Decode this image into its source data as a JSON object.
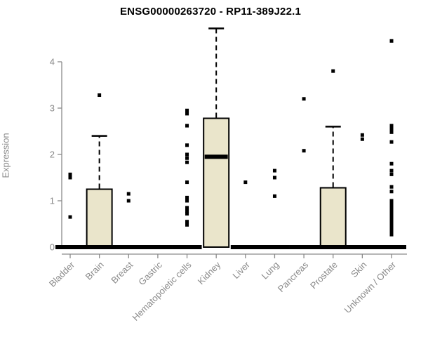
{
  "title": "ENSG00000263720 - RP11-389J22.1",
  "y_axis_title": "Expression",
  "chart_data": {
    "type": "boxplot",
    "title": "ENSG00000263720 - RP11-389J22.1",
    "xlabel": "",
    "ylabel": "Expression",
    "ylim": [
      0,
      4
    ],
    "yticks": [
      0,
      1,
      2,
      3,
      4
    ],
    "grid": false,
    "legend": "none",
    "colors": {
      "box_fill": "#EAE5CB",
      "box_border": "#000000",
      "median": "#000000",
      "whisker": "#000000",
      "outlier": "#000000",
      "axis": "#8a8a8a",
      "tick_label": "#8a8a8a",
      "title": "#000000",
      "background": "#ffffff"
    },
    "categories": [
      "Bladder",
      "Brain",
      "Breast",
      "Gastric",
      "Hematopoietic cells",
      "Kidney",
      "Liver",
      "Lung",
      "Pancreas",
      "Prostate",
      "Skin",
      "Unknown / Other"
    ],
    "series": [
      {
        "label": "Bladder",
        "q1": 0,
        "median": 0,
        "q3": 0,
        "whisker_low": 0,
        "whisker_high": 0,
        "outliers": [
          1.57,
          1.5,
          0.65
        ]
      },
      {
        "label": "Brain",
        "q1": 0,
        "median": 0,
        "q3": 1.25,
        "whisker_low": 0,
        "whisker_high": 2.4,
        "outliers": [
          3.28
        ]
      },
      {
        "label": "Breast",
        "q1": 0,
        "median": 0,
        "q3": 0,
        "whisker_low": 0,
        "whisker_high": 0,
        "outliers": [
          1.15,
          1.0
        ]
      },
      {
        "label": "Gastric",
        "q1": 0,
        "median": 0,
        "q3": 0,
        "whisker_low": 0,
        "whisker_high": 0,
        "outliers": []
      },
      {
        "label": "Hematopoietic cells",
        "q1": 0,
        "median": 0,
        "q3": 0,
        "whisker_low": 0,
        "whisker_high": 0,
        "outliers": [
          2.95,
          2.88,
          2.62,
          2.2,
          2.0,
          1.92,
          1.83,
          1.4,
          1.07,
          1.0,
          0.85,
          0.78,
          0.72,
          0.55,
          0.48
        ]
      },
      {
        "label": "Kidney",
        "q1": 0,
        "median": 1.95,
        "q3": 2.78,
        "whisker_low": 0,
        "whisker_high": 4.72,
        "outliers": []
      },
      {
        "label": "Liver",
        "q1": 0,
        "median": 0,
        "q3": 0,
        "whisker_low": 0,
        "whisker_high": 0,
        "outliers": [
          1.4
        ]
      },
      {
        "label": "Lung",
        "q1": 0,
        "median": 0,
        "q3": 0,
        "whisker_low": 0,
        "whisker_high": 0,
        "outliers": [
          1.65,
          1.5,
          1.1
        ]
      },
      {
        "label": "Pancreas",
        "q1": 0,
        "median": 0,
        "q3": 0,
        "whisker_low": 0,
        "whisker_high": 0,
        "outliers": [
          3.2,
          2.08
        ]
      },
      {
        "label": "Prostate",
        "q1": 0,
        "median": 0,
        "q3": 1.28,
        "whisker_low": 0,
        "whisker_high": 2.6,
        "outliers": [
          3.8
        ]
      },
      {
        "label": "Skin",
        "q1": 0,
        "median": 0,
        "q3": 0,
        "whisker_low": 0,
        "whisker_high": 0,
        "outliers": [
          2.42,
          2.33
        ]
      },
      {
        "label": "Unknown / Other",
        "q1": 0,
        "median": 0,
        "q3": 0,
        "whisker_low": 0,
        "whisker_high": 0,
        "outliers": [
          4.45,
          2.62,
          2.55,
          2.48,
          2.27,
          1.8,
          1.65,
          1.57,
          1.3,
          1.2,
          1.0,
          0.93,
          0.87,
          0.8,
          0.73,
          0.67,
          0.6,
          0.55,
          0.5,
          0.45,
          0.4,
          0.35,
          0.3,
          0.27
        ]
      }
    ]
  }
}
